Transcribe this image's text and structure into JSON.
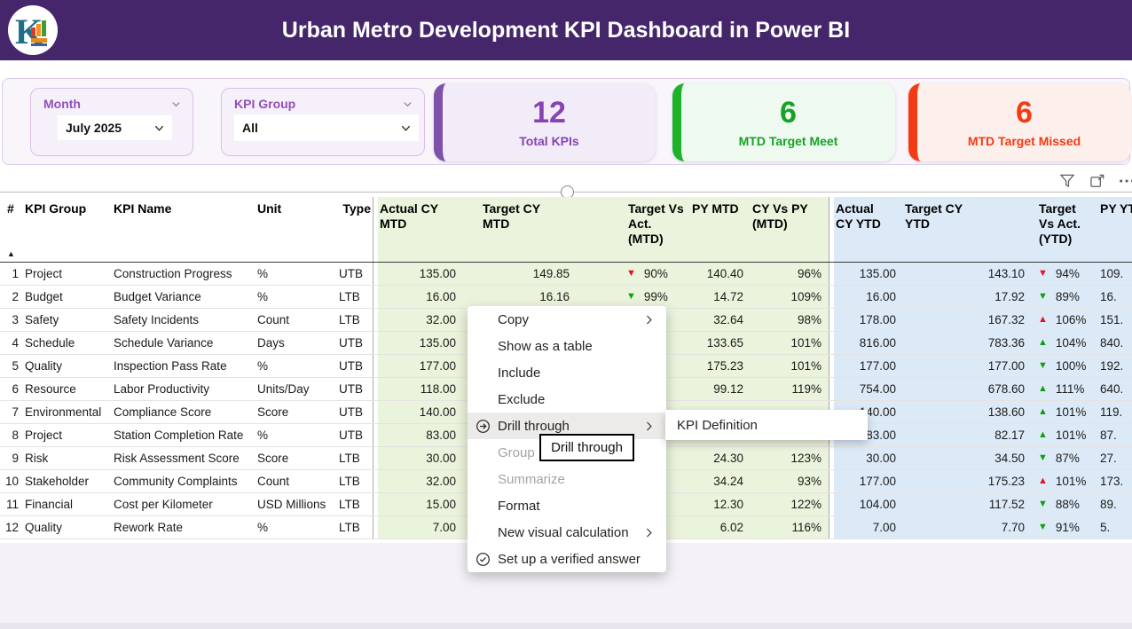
{
  "header": {
    "title": "Urban Metro Development KPI Dashboard in Power BI",
    "logo_letter": "K"
  },
  "filters": {
    "month": {
      "label": "Month",
      "value": "July 2025"
    },
    "kpi_group": {
      "label": "KPI Group",
      "value": "All"
    }
  },
  "cards": [
    {
      "value": "12",
      "label": "Total KPIs",
      "accent": "#7E52A8",
      "bg": "#F2EBF8",
      "text": "#8743B3"
    },
    {
      "value": "6",
      "label": "MTD Target Meet",
      "accent": "#1CB32B",
      "bg": "#EEF9EF",
      "text": "#17A227"
    },
    {
      "value": "6",
      "label": "MTD Target Missed",
      "accent": "#F43A12",
      "bg": "#FDF0EC",
      "text": "#F43A12"
    }
  ],
  "visual_header": {
    "icons": [
      "filter-icon",
      "focus-mode-icon",
      "more-options-icon"
    ]
  },
  "table": {
    "sort_icon": "▲",
    "arrow_glyphs": {
      "up": "▲",
      "down": "▼"
    },
    "arrow_colors": {
      "red": "#E81123",
      "green": "#0E9E0E"
    },
    "columns": [
      "#",
      "KPI Group",
      "KPI Name",
      "Unit",
      "Type",
      "Actual CY\nMTD",
      "Target CY\nMTD",
      "Target Vs\nAct.\n(MTD)",
      "PY MTD",
      "CY Vs PY\n(MTD)",
      "Actual\nCY YTD",
      "Target CY\nYTD",
      "Target\nVs Act.\n(YTD)",
      "PY YTD"
    ],
    "rows": [
      {
        "n": "1",
        "group": "Project",
        "name": "Construction Progress",
        "unit": "%",
        "type": "UTB",
        "actual_mtd": "135.00",
        "target_mtd": "149.85",
        "tva_mtd": {
          "dir": "down",
          "color": "red",
          "value": "90%"
        },
        "py_mtd": "140.40",
        "cy_vs_py_mtd": "96%",
        "actual_ytd": "135.00",
        "target_ytd": "143.10",
        "tva_ytd": {
          "dir": "down",
          "color": "red",
          "value": "94%"
        },
        "py_ytd": "109."
      },
      {
        "n": "2",
        "group": "Budget",
        "name": "Budget Variance",
        "unit": "%",
        "type": "LTB",
        "actual_mtd": "16.00",
        "target_mtd": "16.16",
        "tva_mtd": {
          "dir": "down",
          "color": "green",
          "value": "99%"
        },
        "py_mtd": "14.72",
        "cy_vs_py_mtd": "109%",
        "actual_ytd": "16.00",
        "target_ytd": "17.92",
        "tva_ytd": {
          "dir": "down",
          "color": "green",
          "value": "89%"
        },
        "py_ytd": "16."
      },
      {
        "n": "3",
        "group": "Safety",
        "name": "Safety Incidents",
        "unit": "Count",
        "type": "LTB",
        "actual_mtd": "32.00",
        "target_mtd": null,
        "tva_mtd": null,
        "py_mtd": "32.64",
        "cy_vs_py_mtd": "98%",
        "actual_ytd": "178.00",
        "target_ytd": "167.32",
        "tva_ytd": {
          "dir": "up",
          "color": "red",
          "value": "106%"
        },
        "py_ytd": "151."
      },
      {
        "n": "4",
        "group": "Schedule",
        "name": "Schedule Variance",
        "unit": "Days",
        "type": "UTB",
        "actual_mtd": "135.00",
        "target_mtd": null,
        "tva_mtd": null,
        "py_mtd": "133.65",
        "cy_vs_py_mtd": "101%",
        "actual_ytd": "816.00",
        "target_ytd": "783.36",
        "tva_ytd": {
          "dir": "up",
          "color": "green",
          "value": "104%"
        },
        "py_ytd": "840."
      },
      {
        "n": "5",
        "group": "Quality",
        "name": "Inspection Pass Rate",
        "unit": "%",
        "type": "UTB",
        "actual_mtd": "177.00",
        "target_mtd": null,
        "tva_mtd": null,
        "py_mtd": "175.23",
        "cy_vs_py_mtd": "101%",
        "actual_ytd": "177.00",
        "target_ytd": "177.00",
        "tva_ytd": {
          "dir": "down",
          "color": "green",
          "value": "100%"
        },
        "py_ytd": "192."
      },
      {
        "n": "6",
        "group": "Resource",
        "name": "Labor Productivity",
        "unit": "Units/Day",
        "type": "UTB",
        "actual_mtd": "118.00",
        "target_mtd": null,
        "tva_mtd": null,
        "py_mtd": "99.12",
        "cy_vs_py_mtd": "119%",
        "actual_ytd": "754.00",
        "target_ytd": "678.60",
        "tva_ytd": {
          "dir": "up",
          "color": "green",
          "value": "111%"
        },
        "py_ytd": "640."
      },
      {
        "n": "7",
        "group": "Environmental",
        "name": "Compliance Score",
        "unit": "Score",
        "type": "UTB",
        "actual_mtd": "140.00",
        "target_mtd": null,
        "tva_mtd": null,
        "py_mtd": null,
        "cy_vs_py_mtd": null,
        "actual_ytd": "140.00",
        "target_ytd": "138.60",
        "tva_ytd": {
          "dir": "up",
          "color": "green",
          "value": "101%"
        },
        "py_ytd": "119."
      },
      {
        "n": "8",
        "group": "Project",
        "name": "Station Completion Rate",
        "unit": "%",
        "type": "UTB",
        "actual_mtd": "83.00",
        "target_mtd": null,
        "tva_mtd": null,
        "py_mtd": null,
        "cy_vs_py_mtd": null,
        "actual_ytd": "83.00",
        "target_ytd": "82.17",
        "tva_ytd": {
          "dir": "up",
          "color": "green",
          "value": "101%"
        },
        "py_ytd": "87."
      },
      {
        "n": "9",
        "group": "Risk",
        "name": "Risk Assessment Score",
        "unit": "Score",
        "type": "LTB",
        "actual_mtd": "30.00",
        "target_mtd": null,
        "tva_mtd": null,
        "py_mtd": "24.30",
        "cy_vs_py_mtd": "123%",
        "actual_ytd": "30.00",
        "target_ytd": "34.50",
        "tva_ytd": {
          "dir": "down",
          "color": "green",
          "value": "87%"
        },
        "py_ytd": "27."
      },
      {
        "n": "10",
        "group": "Stakeholder",
        "name": "Community Complaints",
        "unit": "Count",
        "type": "LTB",
        "actual_mtd": "32.00",
        "target_mtd": null,
        "tva_mtd": null,
        "py_mtd": "34.24",
        "cy_vs_py_mtd": "93%",
        "actual_ytd": "177.00",
        "target_ytd": "175.23",
        "tva_ytd": {
          "dir": "up",
          "color": "red",
          "value": "101%"
        },
        "py_ytd": "173."
      },
      {
        "n": "11",
        "group": "Financial",
        "name": "Cost per Kilometer",
        "unit": "USD Millions",
        "type": "LTB",
        "actual_mtd": "15.00",
        "target_mtd": null,
        "tva_mtd": null,
        "py_mtd": "12.30",
        "cy_vs_py_mtd": "122%",
        "actual_ytd": "104.00",
        "target_ytd": "117.52",
        "tva_ytd": {
          "dir": "down",
          "color": "green",
          "value": "88%"
        },
        "py_ytd": "89."
      },
      {
        "n": "12",
        "group": "Quality",
        "name": "Rework Rate",
        "unit": "%",
        "type": "LTB",
        "actual_mtd": "7.00",
        "target_mtd": null,
        "tva_mtd": null,
        "py_mtd": "6.02",
        "cy_vs_py_mtd": "116%",
        "actual_ytd": "7.00",
        "target_ytd": "7.70",
        "tva_ytd": {
          "dir": "down",
          "color": "green",
          "value": "91%"
        },
        "py_ytd": "5."
      }
    ]
  },
  "context_menu": {
    "items": [
      {
        "label": "Copy",
        "submenu": true
      },
      {
        "label": "Show as a table"
      },
      {
        "label": "Include"
      },
      {
        "label": "Exclude"
      },
      {
        "label": "Drill through",
        "icon": "drill-through-icon",
        "submenu": true,
        "highlighted": true
      },
      {
        "label": "Group",
        "disabled": true
      },
      {
        "label": "Summarize",
        "disabled": true
      },
      {
        "label": "Format"
      },
      {
        "label": "New visual calculation",
        "submenu": true
      },
      {
        "label": "Set up a verified answer",
        "icon": "verified-answer-icon"
      }
    ],
    "submenu_items": [
      "KPI Definition"
    ],
    "tooltip": "Drill through"
  }
}
